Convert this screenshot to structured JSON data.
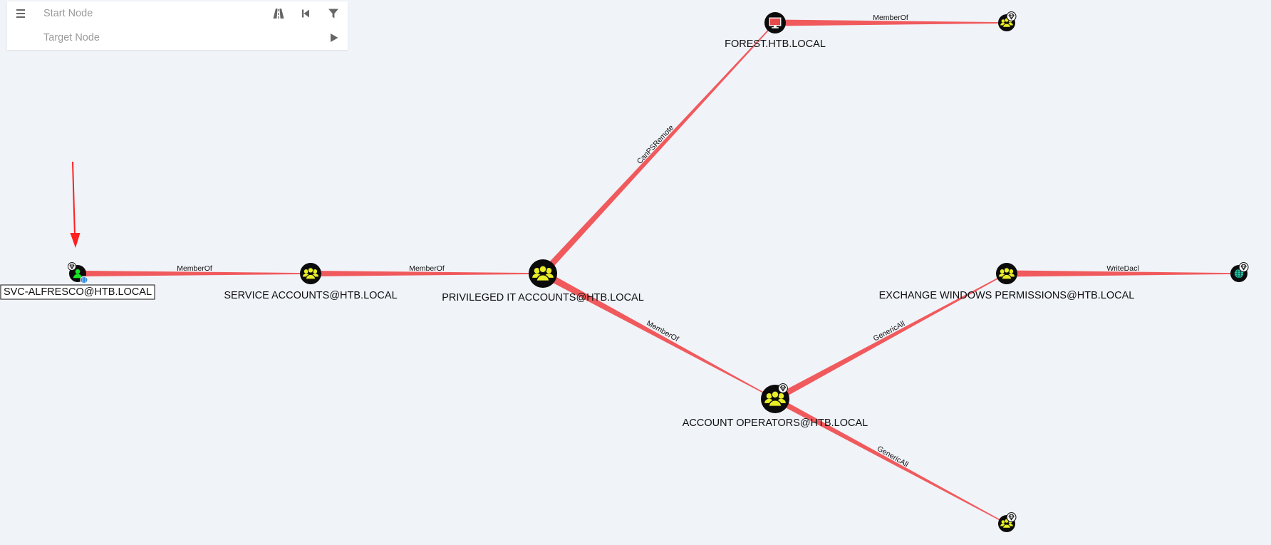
{
  "search": {
    "start_placeholder": "Start Node",
    "target_placeholder": "Target Node"
  },
  "toolbar": {
    "menu_icon": "hamburger-menu-icon",
    "pathfinding_icon": "road-icon",
    "back_icon": "step-backward-icon",
    "filter_icon": "filter-icon",
    "play_icon": "play-icon"
  },
  "colors": {
    "edge": "#f05a5d",
    "group_icon": "#e9ef25",
    "user_icon": "#17e625",
    "computer_icon": "#e84b4b",
    "domain_icon": "#22c6a8",
    "annotation_arrow": "#ff2020"
  },
  "nodes": [
    {
      "id": "svc_alfresco",
      "type": "user",
      "label": "SVC-ALFRESCO@HTB.LOCAL",
      "highlighted": true,
      "owned": true
    },
    {
      "id": "service_accounts",
      "type": "group",
      "label": "SERVICE ACCOUNTS@HTB.LOCAL"
    },
    {
      "id": "privileged_it",
      "type": "group",
      "label": "PRIVILEGED IT ACCOUNTS@HTB.LOCAL"
    },
    {
      "id": "forest",
      "type": "computer",
      "label": "FOREST.HTB.LOCAL"
    },
    {
      "id": "group_top_right",
      "type": "group",
      "label": "",
      "high_value": true
    },
    {
      "id": "account_operators",
      "type": "group",
      "label": "ACCOUNT OPERATORS@HTB.LOCAL",
      "high_value": true
    },
    {
      "id": "exchange_windows_permissions",
      "type": "group",
      "label": "EXCHANGE WINDOWS PERMISSIONS@HTB.LOCAL"
    },
    {
      "id": "domain",
      "type": "domain",
      "label": "",
      "high_value": true
    },
    {
      "id": "group_bottom_right",
      "type": "group",
      "label": "",
      "high_value": true
    }
  ],
  "edges": [
    {
      "from": "svc_alfresco",
      "to": "service_accounts",
      "label": "MemberOf"
    },
    {
      "from": "service_accounts",
      "to": "privileged_it",
      "label": "MemberOf"
    },
    {
      "from": "privileged_it",
      "to": "forest",
      "label": "CanPSRemote"
    },
    {
      "from": "forest",
      "to": "group_top_right",
      "label": "MemberOf"
    },
    {
      "from": "privileged_it",
      "to": "account_operators",
      "label": "MemberOf"
    },
    {
      "from": "account_operators",
      "to": "exchange_windows_permissions",
      "label": "GenericAll"
    },
    {
      "from": "exchange_windows_permissions",
      "to": "domain",
      "label": "WriteDacl"
    },
    {
      "from": "account_operators",
      "to": "group_bottom_right",
      "label": "GenericAll"
    }
  ]
}
